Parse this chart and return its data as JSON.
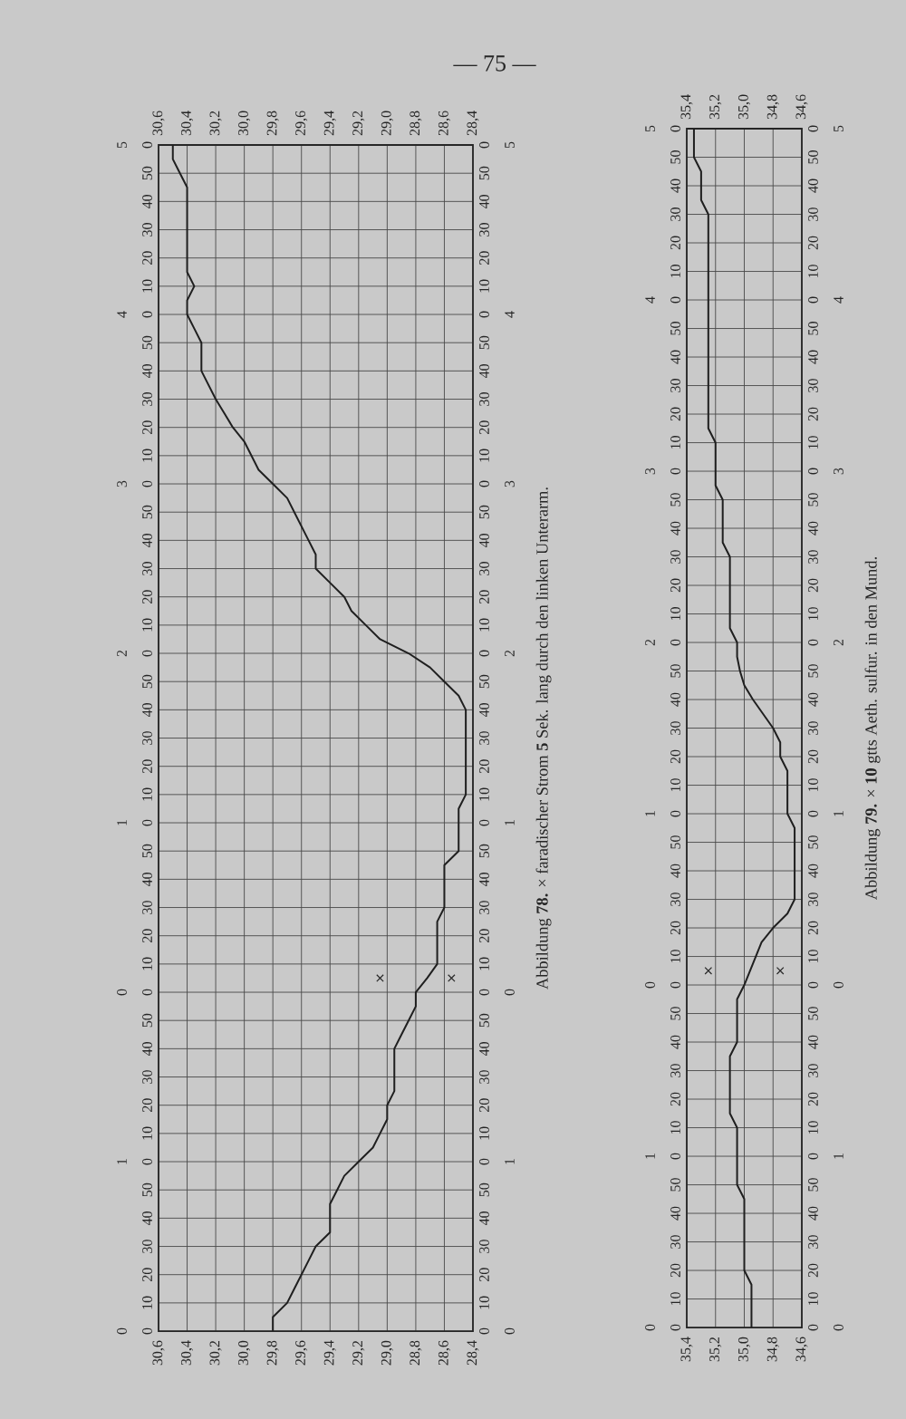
{
  "chart_data": [
    {
      "type": "line",
      "orientation": "horizontal",
      "categories": [
        "5 0",
        null,
        "50",
        null,
        "40",
        null,
        "30",
        null,
        "20",
        null,
        "10",
        null,
        "4 0",
        null,
        "50",
        null,
        "40",
        null,
        "30",
        null,
        "20",
        null,
        "10",
        null,
        "3 0",
        null,
        "50",
        null,
        "40",
        null,
        "30",
        null,
        "20",
        null,
        "10",
        null,
        "2 0",
        null,
        "50",
        null,
        "40",
        null,
        "30",
        null,
        "20",
        null,
        "10",
        null,
        "1 0",
        null,
        "50",
        null,
        "40",
        null,
        "30",
        null,
        "20",
        null,
        "10",
        null,
        "0 0",
        null,
        "50",
        null,
        "40",
        null,
        "30",
        null,
        "20",
        null,
        "10",
        null,
        "1 0",
        null,
        "50",
        null,
        "40",
        null,
        "30",
        null,
        "20",
        null,
        "10",
        null,
        "0 0"
      ],
      "y2_categories": [
        "0 5",
        null,
        "50",
        null,
        "40",
        null,
        "30",
        null,
        "20",
        null,
        "10",
        null,
        "0 4",
        null,
        "50",
        null,
        "40",
        null,
        "30",
        null,
        "20",
        null,
        "10",
        null,
        "0 3",
        null,
        "50",
        null,
        "40",
        null,
        "30",
        null,
        "20",
        null,
        "10",
        null,
        "0 2",
        null,
        "50",
        null,
        "40",
        null,
        "30",
        null,
        "20",
        null,
        "10",
        null,
        "0 1",
        null,
        "50",
        null,
        "40",
        null,
        "30",
        null,
        "20",
        null,
        "10",
        null,
        "0 0",
        null,
        "50",
        null,
        "40",
        null,
        "30",
        null,
        "20",
        null,
        "10",
        null,
        "0 1",
        null,
        "50",
        null,
        "40",
        null,
        "30",
        null,
        "20",
        null,
        "10",
        null,
        "0 0"
      ],
      "series": [
        {
          "color": "#1f1f1f",
          "values": [
            30.5,
            30.5,
            30.45,
            30.4,
            30.4,
            30.4,
            30.4,
            30.4,
            30.4,
            30.4,
            30.35,
            30.4,
            30.4,
            30.35,
            30.3,
            30.3,
            30.3,
            30.25,
            30.2,
            30.14,
            30.08,
            30.0,
            29.95,
            29.9,
            29.8,
            29.7,
            29.65,
            29.6,
            29.55,
            29.5,
            29.5,
            29.4,
            29.3,
            29.25,
            29.15,
            29.05,
            28.85,
            28.7,
            28.6,
            28.5,
            28.45,
            28.45,
            28.45,
            28.45,
            28.45,
            28.45,
            28.45,
            28.5,
            28.5,
            28.5,
            28.5,
            28.6,
            28.6,
            28.6,
            28.6,
            28.65,
            28.65,
            28.65,
            28.65,
            28.72,
            28.8,
            28.8,
            28.85,
            28.9,
            28.95,
            28.95,
            28.95,
            28.95,
            29.0,
            29.0,
            29.05,
            29.1,
            29.2,
            29.3,
            29.35,
            29.4,
            29.4,
            29.4,
            29.5,
            29.55,
            29.6,
            29.65,
            29.7,
            29.8,
            29.8
          ]
        },
        {
          "type": "scatter",
          "marker": "cross",
          "color": "#262626",
          "values": [
            null,
            null,
            null,
            null,
            null,
            null,
            null,
            null,
            null,
            null,
            null,
            null,
            null,
            null,
            null,
            null,
            null,
            null,
            null,
            null,
            null,
            null,
            null,
            null,
            null,
            null,
            null,
            null,
            null,
            null,
            null,
            null,
            null,
            null,
            null,
            null,
            null,
            null,
            null,
            null,
            null,
            null,
            null,
            null,
            null,
            null,
            null,
            null,
            null,
            null,
            null,
            null,
            null,
            null,
            null,
            null,
            null,
            null,
            null,
            29.05,
            null,
            null,
            null,
            null,
            null,
            null,
            null,
            null,
            null,
            null,
            null,
            null,
            null,
            null,
            null,
            null,
            null,
            null,
            null,
            null,
            null,
            null,
            null,
            null,
            null
          ]
        },
        {
          "type": "scatter",
          "marker": "cross",
          "color": "#262626",
          "values": [
            null,
            null,
            null,
            null,
            null,
            null,
            null,
            null,
            null,
            null,
            null,
            null,
            null,
            null,
            null,
            null,
            null,
            null,
            null,
            null,
            null,
            null,
            null,
            null,
            null,
            null,
            null,
            null,
            null,
            null,
            null,
            null,
            null,
            null,
            null,
            null,
            null,
            null,
            null,
            null,
            null,
            null,
            null,
            null,
            null,
            null,
            null,
            null,
            null,
            null,
            null,
            null,
            null,
            null,
            null,
            null,
            null,
            null,
            null,
            28.55,
            null,
            null,
            null,
            null,
            null,
            null,
            null,
            null,
            null,
            null,
            null,
            null,
            null,
            null,
            null,
            null,
            null,
            null,
            null,
            null,
            null,
            null,
            null,
            null,
            null
          ]
        }
      ],
      "xlim": [
        30.6,
        28.4
      ],
      "xticks": [
        {
          "value": 30.6,
          "label": "30,6"
        },
        {
          "value": 30.4,
          "label": "30,4"
        },
        {
          "value": 30.2,
          "label": "30,2"
        },
        {
          "value": 30.0,
          "label": "30,0"
        },
        {
          "value": 29.8,
          "label": "29,8"
        },
        {
          "value": 29.6,
          "label": "29,6"
        },
        {
          "value": 29.4,
          "label": "29,4"
        },
        {
          "value": 29.2,
          "label": "29,2"
        },
        {
          "value": 29.0,
          "label": "29,0"
        },
        {
          "value": 28.8,
          "label": "28,8"
        },
        {
          "value": 28.6,
          "label": "28,6"
        },
        {
          "value": 28.4,
          "label": "28,4"
        }
      ],
      "x2lim": [
        30.6,
        28.4
      ],
      "x2ticks": [
        {
          "value": 30.6,
          "label": "30,6"
        },
        {
          "value": 30.4,
          "label": "30,4"
        },
        {
          "value": 30.2,
          "label": "30,2"
        },
        {
          "value": 30.0,
          "label": "30,0"
        },
        {
          "value": 29.8,
          "label": "29,8"
        },
        {
          "value": 29.6,
          "label": "29,6"
        },
        {
          "value": 29.4,
          "label": "29,4"
        },
        {
          "value": 29.2,
          "label": "29,2"
        },
        {
          "value": 29.0,
          "label": "29,0"
        },
        {
          "value": 28.8,
          "label": "28,8"
        },
        {
          "value": 28.6,
          "label": "28,6"
        },
        {
          "value": 28.4,
          "label": "28,4"
        }
      ],
      "grid": true,
      "annotations": [
        "Abbildung **78.** × faradischer Strom **5** Sek. lang durch den linken Unterarm.",
        "— 75 —"
      ]
    },
    {
      "type": "line",
      "orientation": "horizontal",
      "categories": [
        "5 0",
        null,
        "50",
        null,
        "40",
        null,
        "30",
        null,
        "20",
        null,
        "10",
        null,
        "4 0",
        null,
        "50",
        null,
        "40",
        null,
        "30",
        null,
        "20",
        null,
        "10",
        null,
        "3 0",
        null,
        "50",
        null,
        "40",
        null,
        "30",
        null,
        "20",
        null,
        "10",
        null,
        "2 0",
        null,
        "50",
        null,
        "40",
        null,
        "30",
        null,
        "20",
        null,
        "10",
        null,
        "1 0",
        null,
        "50",
        null,
        "40",
        null,
        "30",
        null,
        "20",
        null,
        "10",
        null,
        "0 0",
        null,
        "50",
        null,
        "40",
        null,
        "30",
        null,
        "20",
        null,
        "10",
        null,
        "1 0",
        null,
        "50",
        null,
        "40",
        null,
        "30",
        null,
        "20",
        null,
        "10",
        null,
        "0 0"
      ],
      "y2_categories": [
        "0 5",
        null,
        "50",
        null,
        "40",
        null,
        "30",
        null,
        "20",
        null,
        "10",
        null,
        "0 4",
        null,
        "50",
        null,
        "40",
        null,
        "30",
        null,
        "20",
        null,
        "10",
        null,
        "0 3",
        null,
        "50",
        null,
        "40",
        null,
        "30",
        null,
        "20",
        null,
        "10",
        null,
        "0 2",
        null,
        "50",
        null,
        "40",
        null,
        "30",
        null,
        "20",
        null,
        "10",
        null,
        "0 1",
        null,
        "50",
        null,
        "40",
        null,
        "30",
        null,
        "20",
        null,
        "10",
        null,
        "0 0",
        null,
        "50",
        null,
        "40",
        null,
        "30",
        null,
        "20",
        null,
        "10",
        null,
        "0 1",
        null,
        "50",
        null,
        "40",
        null,
        "30",
        null,
        "20",
        null,
        "10",
        null,
        "0 0"
      ],
      "series": [
        {
          "color": "#1f1f1f",
          "values": [
            35.35,
            35.35,
            35.35,
            35.3,
            35.3,
            35.3,
            35.25,
            35.25,
            35.25,
            35.25,
            35.25,
            35.25,
            35.25,
            35.25,
            35.25,
            35.25,
            35.25,
            35.25,
            35.25,
            35.25,
            35.25,
            35.25,
            35.2,
            35.2,
            35.2,
            35.2,
            35.15,
            35.15,
            35.15,
            35.15,
            35.1,
            35.1,
            35.1,
            35.1,
            35.1,
            35.1,
            35.05,
            35.05,
            35.03,
            35.0,
            34.94,
            34.87,
            34.8,
            34.75,
            34.75,
            34.7,
            34.7,
            34.7,
            34.7,
            34.65,
            34.65,
            34.65,
            34.65,
            34.65,
            34.65,
            34.7,
            34.8,
            34.88,
            34.92,
            34.96,
            35.0,
            35.05,
            35.05,
            35.05,
            35.05,
            35.1,
            35.1,
            35.1,
            35.1,
            35.1,
            35.05,
            35.05,
            35.05,
            35.05,
            35.05,
            35.0,
            35.0,
            35.0,
            35.0,
            35.0,
            35.0,
            34.95,
            34.95,
            34.95,
            34.95
          ]
        },
        {
          "type": "scatter",
          "marker": "cross",
          "color": "#262626",
          "values": [
            null,
            null,
            null,
            null,
            null,
            null,
            null,
            null,
            null,
            null,
            null,
            null,
            null,
            null,
            null,
            null,
            null,
            null,
            null,
            null,
            null,
            null,
            null,
            null,
            null,
            null,
            null,
            null,
            null,
            null,
            null,
            null,
            null,
            null,
            null,
            null,
            null,
            null,
            null,
            null,
            null,
            null,
            null,
            null,
            null,
            null,
            null,
            null,
            null,
            null,
            null,
            null,
            null,
            null,
            null,
            null,
            null,
            null,
            null,
            35.25,
            null,
            null,
            null,
            null,
            null,
            null,
            null,
            null,
            null,
            null,
            null,
            null,
            null,
            null,
            null,
            null,
            null,
            null,
            null,
            null,
            null,
            null,
            null,
            null,
            null
          ]
        },
        {
          "type": "scatter",
          "marker": "cross",
          "color": "#262626",
          "values": [
            null,
            null,
            null,
            null,
            null,
            null,
            null,
            null,
            null,
            null,
            null,
            null,
            null,
            null,
            null,
            null,
            null,
            null,
            null,
            null,
            null,
            null,
            null,
            null,
            null,
            null,
            null,
            null,
            null,
            null,
            null,
            null,
            null,
            null,
            null,
            null,
            null,
            null,
            null,
            null,
            null,
            null,
            null,
            null,
            null,
            null,
            null,
            null,
            null,
            null,
            null,
            null,
            null,
            null,
            null,
            null,
            null,
            null,
            null,
            34.75,
            null,
            null,
            null,
            null,
            null,
            null,
            null,
            null,
            null,
            null,
            null,
            null,
            null,
            null,
            null,
            null,
            null,
            null,
            null,
            null,
            null,
            null,
            null,
            null,
            null
          ]
        }
      ],
      "xlim": [
        35.4,
        34.6
      ],
      "xticks": [
        {
          "value": 35.4,
          "label": "35,4"
        },
        {
          "value": 35.2,
          "label": "35,2"
        },
        {
          "value": 35.0,
          "label": "35,0"
        },
        {
          "value": 34.8,
          "label": "34,8"
        },
        {
          "value": 34.6,
          "label": "34,6"
        }
      ],
      "x2lim": [
        35.4,
        34.6
      ],
      "x2ticks": [
        {
          "value": 35.4,
          "label": "35,4"
        },
        {
          "value": 35.2,
          "label": "35,2"
        },
        {
          "value": 35.0,
          "label": "35,0"
        },
        {
          "value": 34.8,
          "label": "34,8"
        },
        {
          "value": 34.6,
          "label": "34,6"
        }
      ],
      "grid": true,
      "annotations": [
        "Abbildung **79.** × **10** gtts Aeth. sulfur. in den Mund."
      ]
    }
  ]
}
